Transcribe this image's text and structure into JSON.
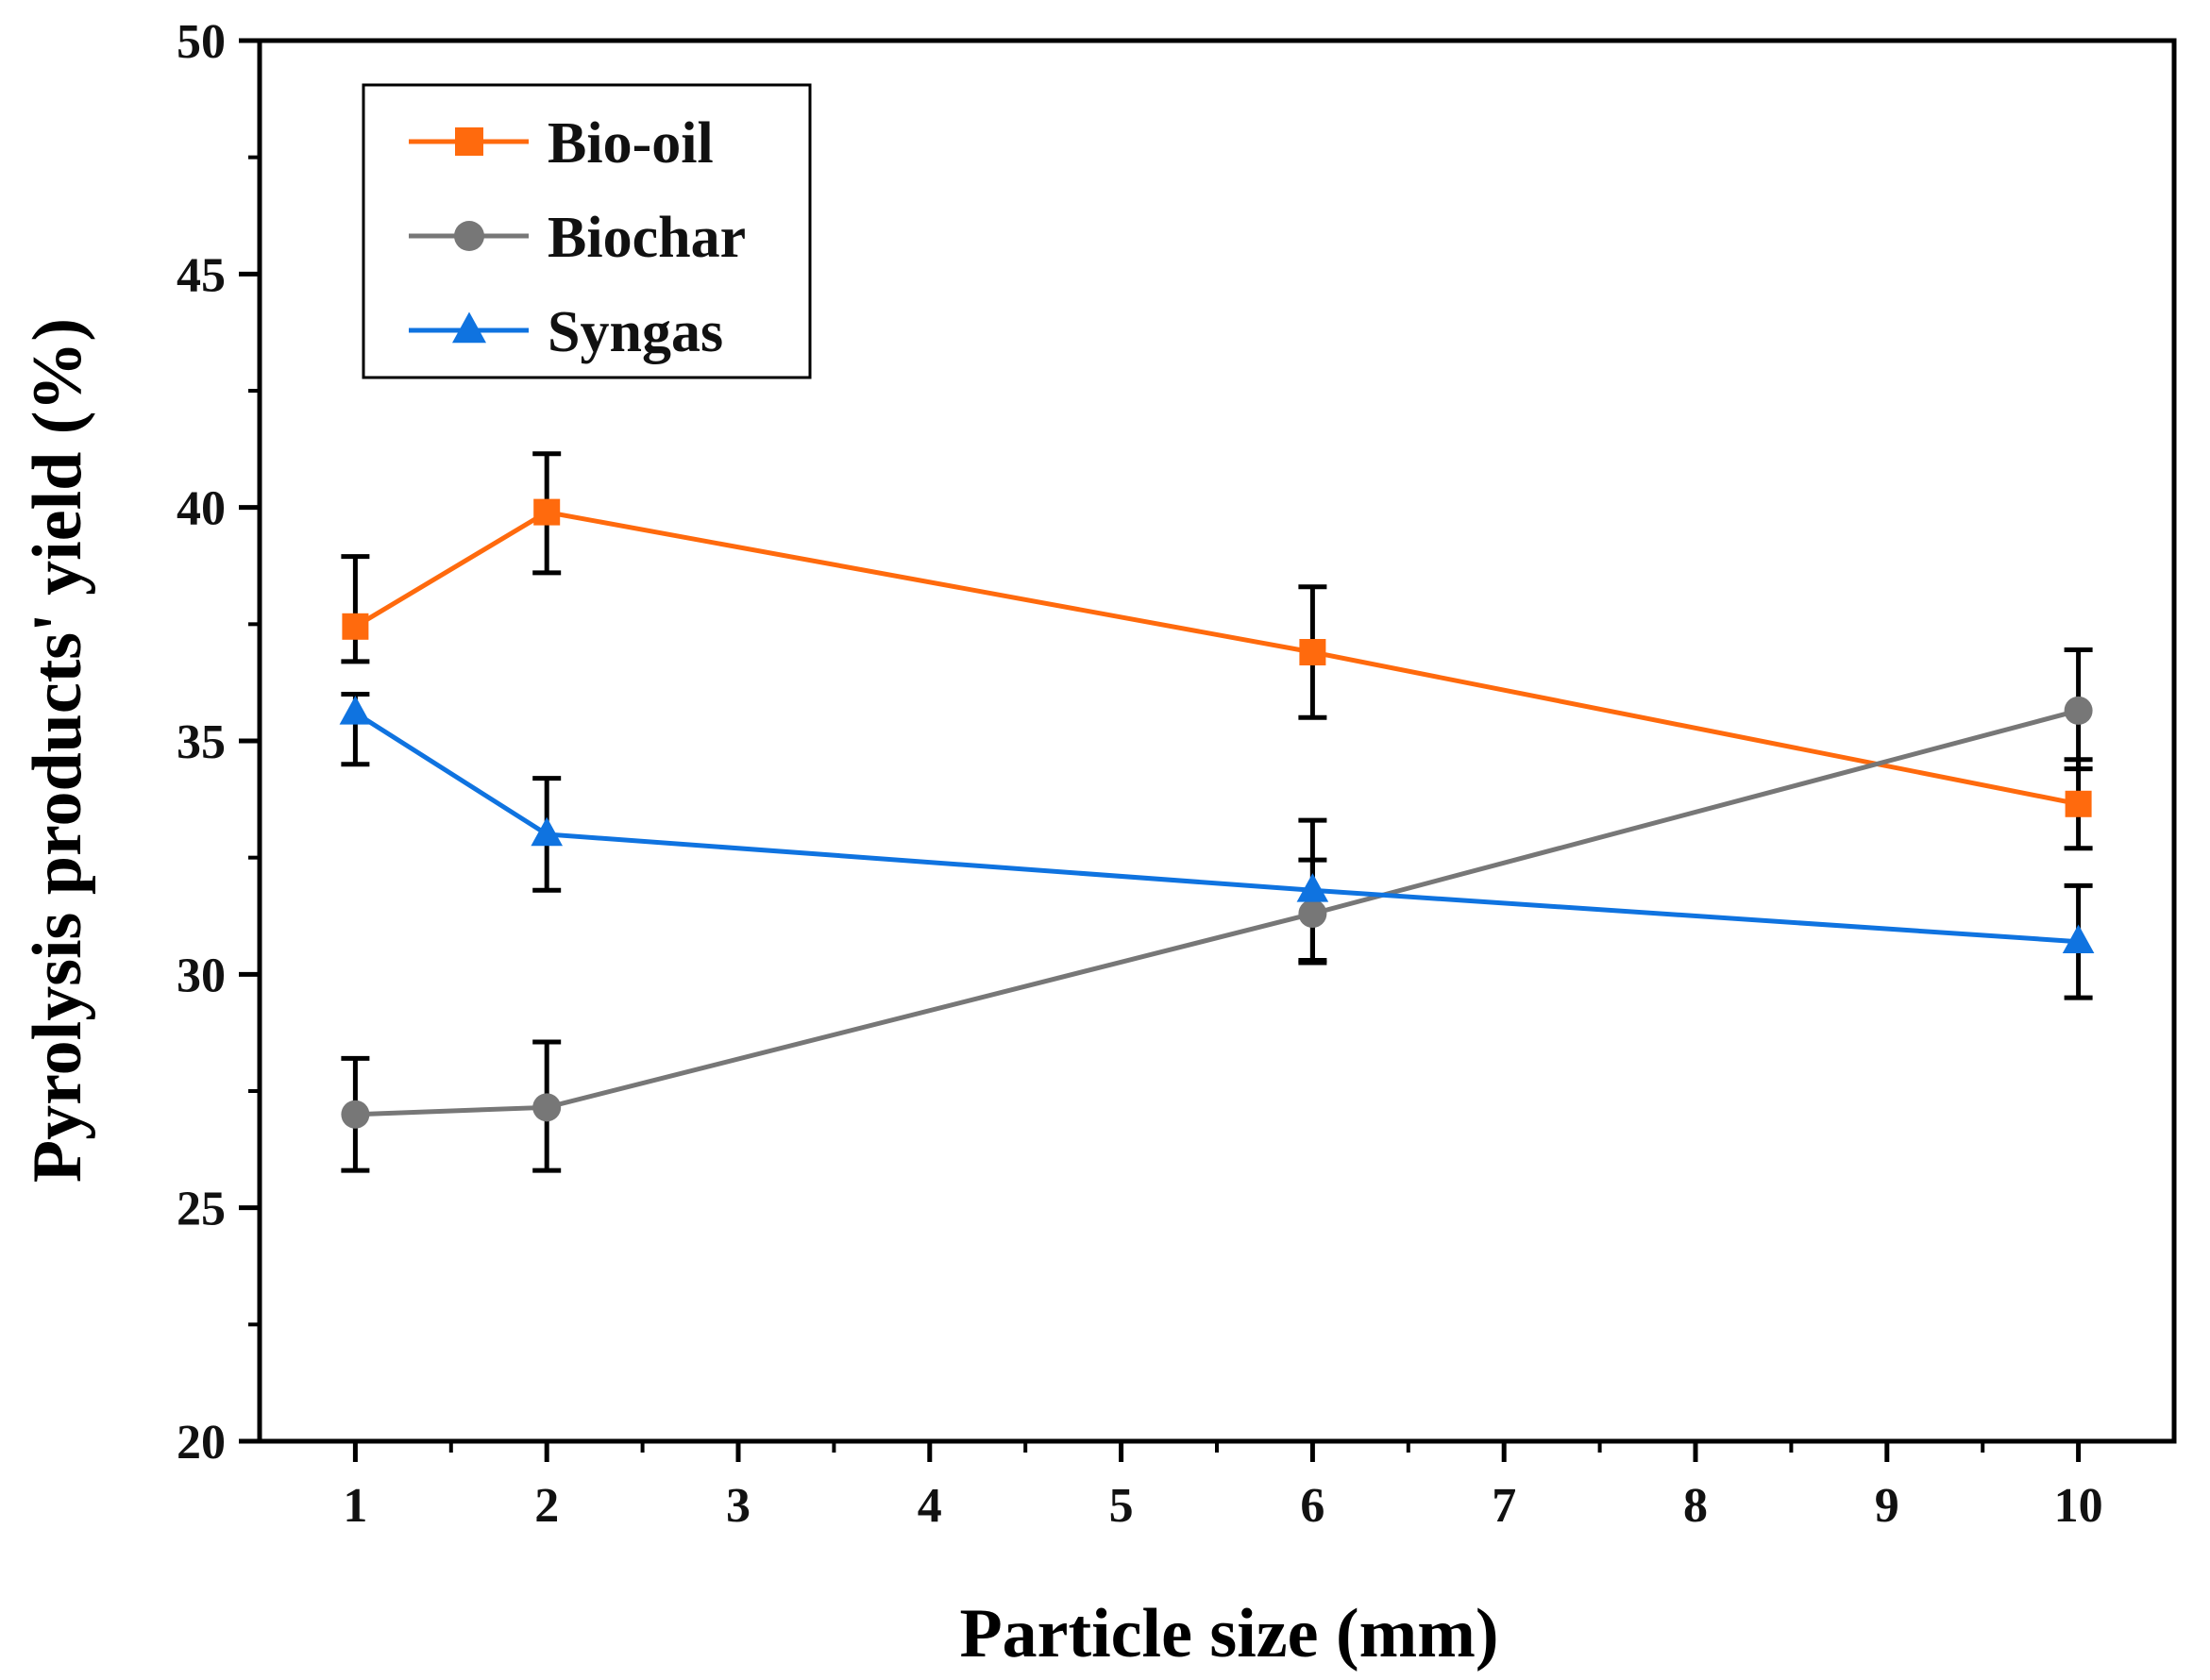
{
  "chart_data": {
    "type": "line",
    "title": "",
    "xlabel": "Particle size (mm)",
    "ylabel": "Pyrolysis products' yield (%)",
    "xlim": [
      0.5,
      10.5
    ],
    "ylim": [
      20,
      50
    ],
    "xticks": [
      1,
      2,
      3,
      4,
      5,
      6,
      7,
      8,
      9,
      10
    ],
    "yticks": [
      20,
      25,
      30,
      35,
      40,
      45,
      50
    ],
    "x": [
      1,
      2,
      6,
      10
    ],
    "legend_position": "top-left",
    "series": [
      {
        "name": "Bio-oil",
        "color": "#FF6A0D",
        "marker": "square",
        "values": [
          37.45,
          39.9,
          36.9,
          33.65
        ],
        "error_low": [
          36.7,
          38.6,
          35.5,
          32.7
        ],
        "error_high": [
          38.95,
          41.15,
          38.3,
          34.6
        ]
      },
      {
        "name": "Biochar",
        "color": "#777777",
        "marker": "circle",
        "values": [
          27.0,
          27.15,
          31.3,
          35.65
        ],
        "error_low": [
          25.8,
          25.8,
          30.25,
          34.4
        ],
        "error_high": [
          28.2,
          28.55,
          32.45,
          36.95
        ]
      },
      {
        "name": "Syngas",
        "color": "#0F73E0",
        "marker": "triangle",
        "values": [
          35.6,
          33.0,
          31.8,
          30.7
        ],
        "error_low": [
          34.5,
          31.8,
          30.3,
          29.5
        ],
        "error_high": [
          36.0,
          34.2,
          33.3,
          31.9
        ]
      }
    ]
  }
}
